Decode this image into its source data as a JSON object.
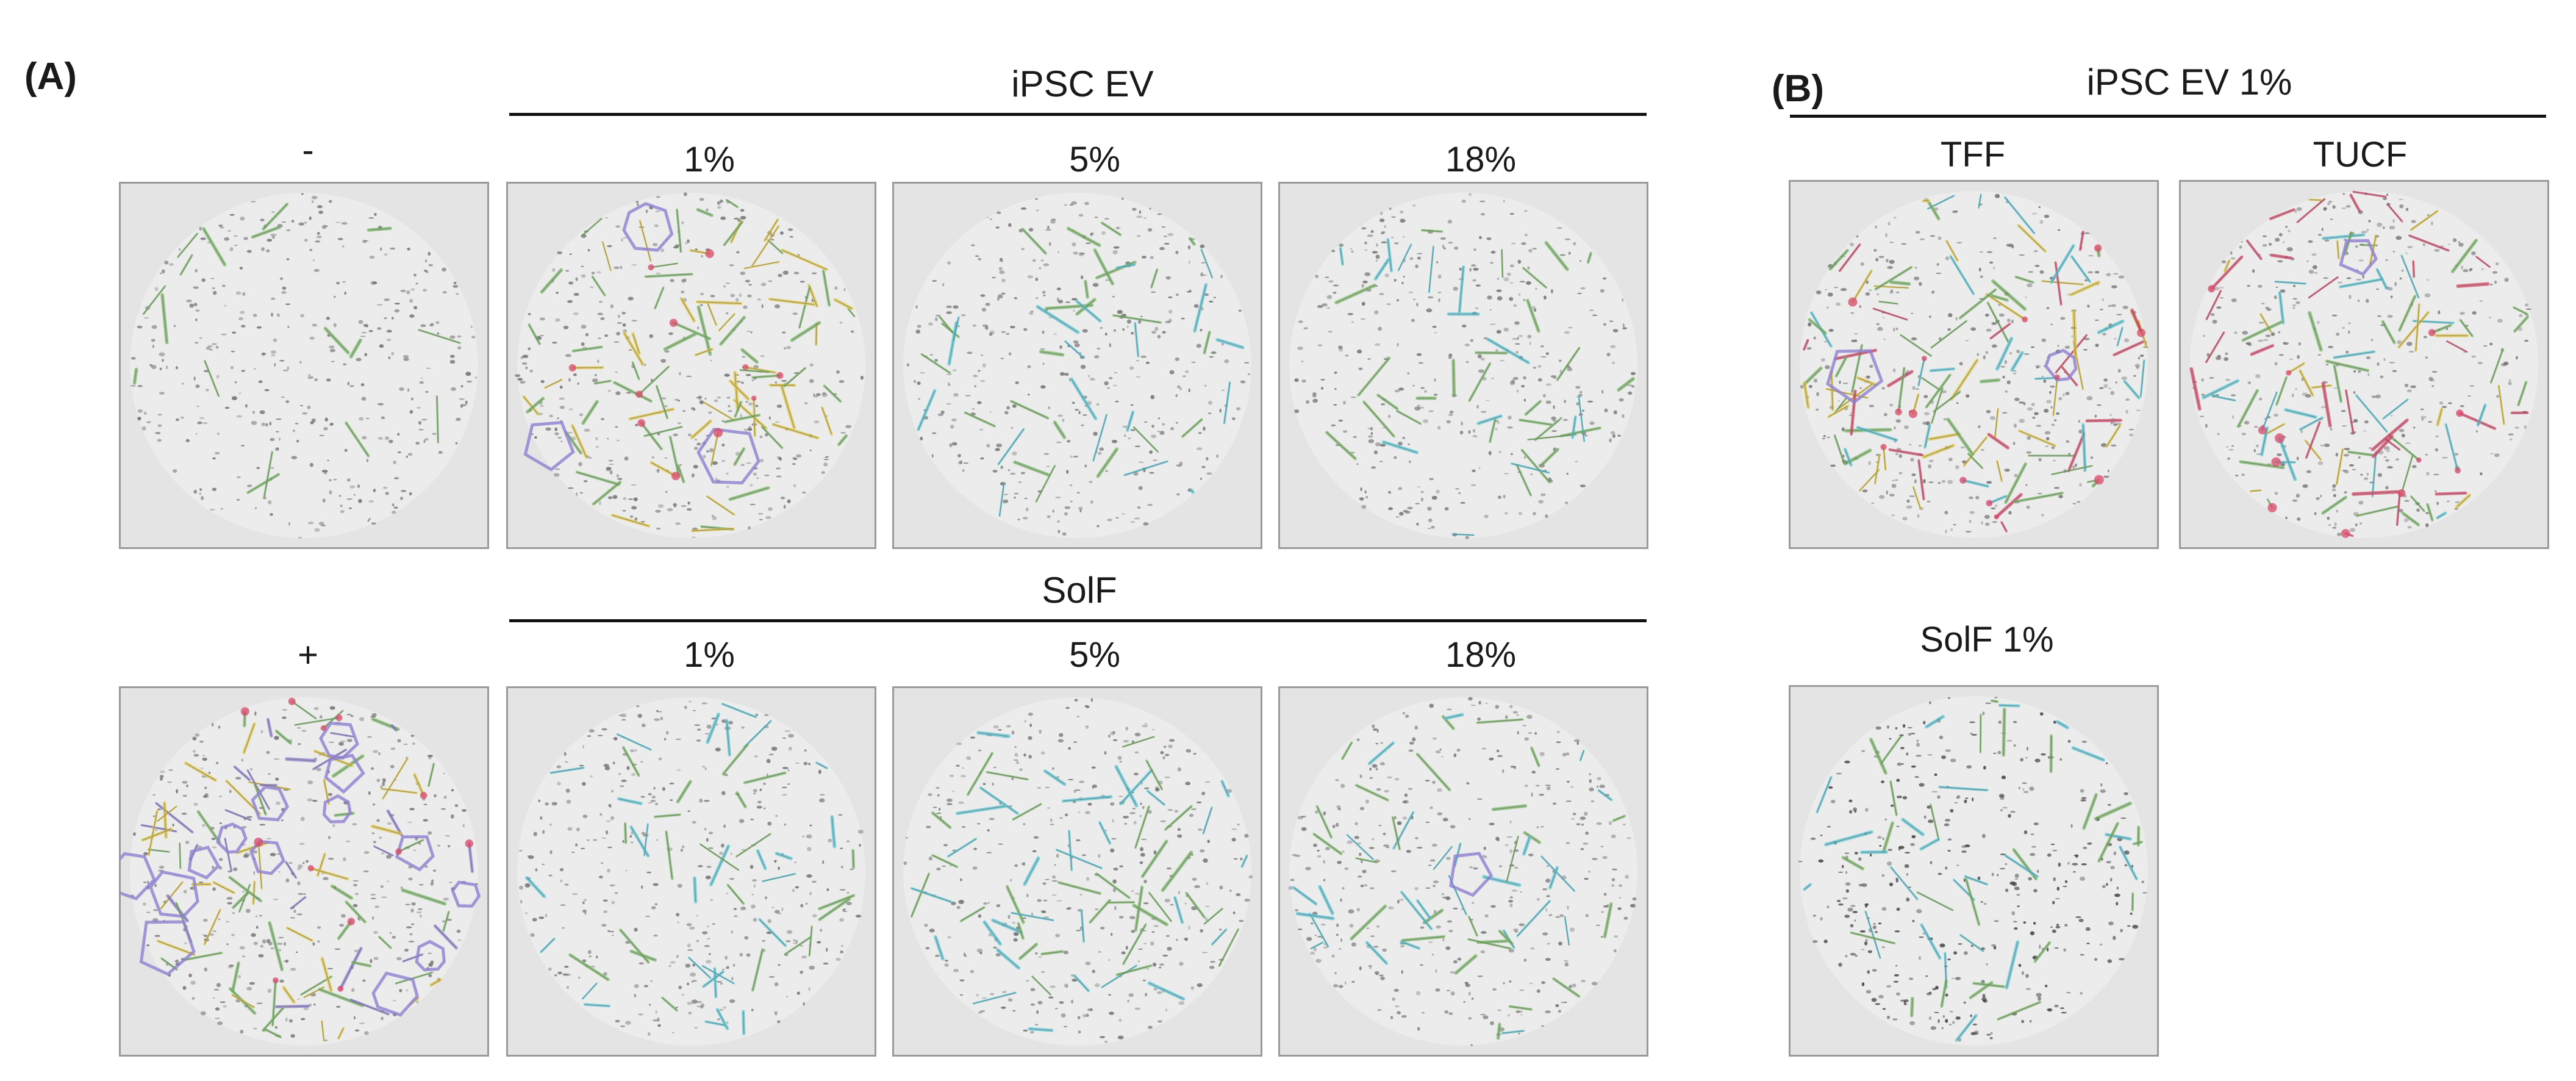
{
  "panel_a": {
    "label": "(A)",
    "ipsc_group": {
      "title": "iPSC EV",
      "doses": [
        "1%",
        "5%",
        "18%"
      ]
    },
    "solf_group": {
      "title": "SolF",
      "doses": [
        "1%",
        "5%",
        "18%"
      ]
    },
    "negative_control": "-",
    "positive_control": "+"
  },
  "panel_b": {
    "label": "(B)",
    "ipsc_group": {
      "title": "iPSC EV 1%",
      "columns": [
        "TFF",
        "TUCF"
      ]
    },
    "solf_title": "SolF 1%"
  },
  "colors": {
    "background": "#e4e4e4",
    "dots": "#6e6e6e",
    "segment_green": "#7cb86a",
    "segment_yellow": "#e2c84a",
    "segment_cyan": "#5ec8d8",
    "mesh_purple": "#8f7fd0",
    "node_red": "#d8486a"
  }
}
